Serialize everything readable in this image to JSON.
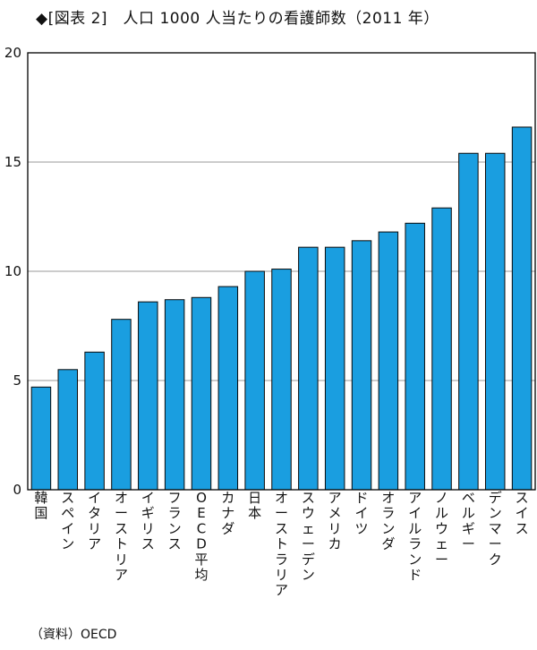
{
  "title": "◆[図表 2]　人口 1000 人当たりの看護師数（2011 年）",
  "source": "（資料）OECD",
  "colors": {
    "bar": "#1a9ee0",
    "bar_edge": "#0a0a0a",
    "grid": "#999999",
    "axis": "#000000"
  },
  "chart_data": {
    "type": "bar",
    "title": "人口 1000 人当たりの看護師数（2011 年）",
    "xlabel": "",
    "ylabel": "",
    "ylim": [
      0,
      20
    ],
    "yticks": [
      0,
      5,
      10,
      15,
      20
    ],
    "grid": true,
    "categories": [
      "韓国",
      "スペイン",
      "イタリア",
      "オーストリア",
      "イギリス",
      "フランス",
      "OECD平均",
      "カナダ",
      "日本",
      "オーストラリア",
      "スウェーデン",
      "アメリカ",
      "ドイツ",
      "オランダ",
      "アイルランド",
      "ノルウェー",
      "ベルギー",
      "デンマーク",
      "スイス"
    ],
    "values": [
      4.7,
      5.5,
      6.3,
      7.8,
      8.6,
      8.7,
      8.8,
      9.3,
      10.0,
      10.1,
      11.1,
      11.1,
      11.4,
      11.8,
      12.2,
      12.9,
      15.4,
      15.4,
      16.6
    ]
  }
}
